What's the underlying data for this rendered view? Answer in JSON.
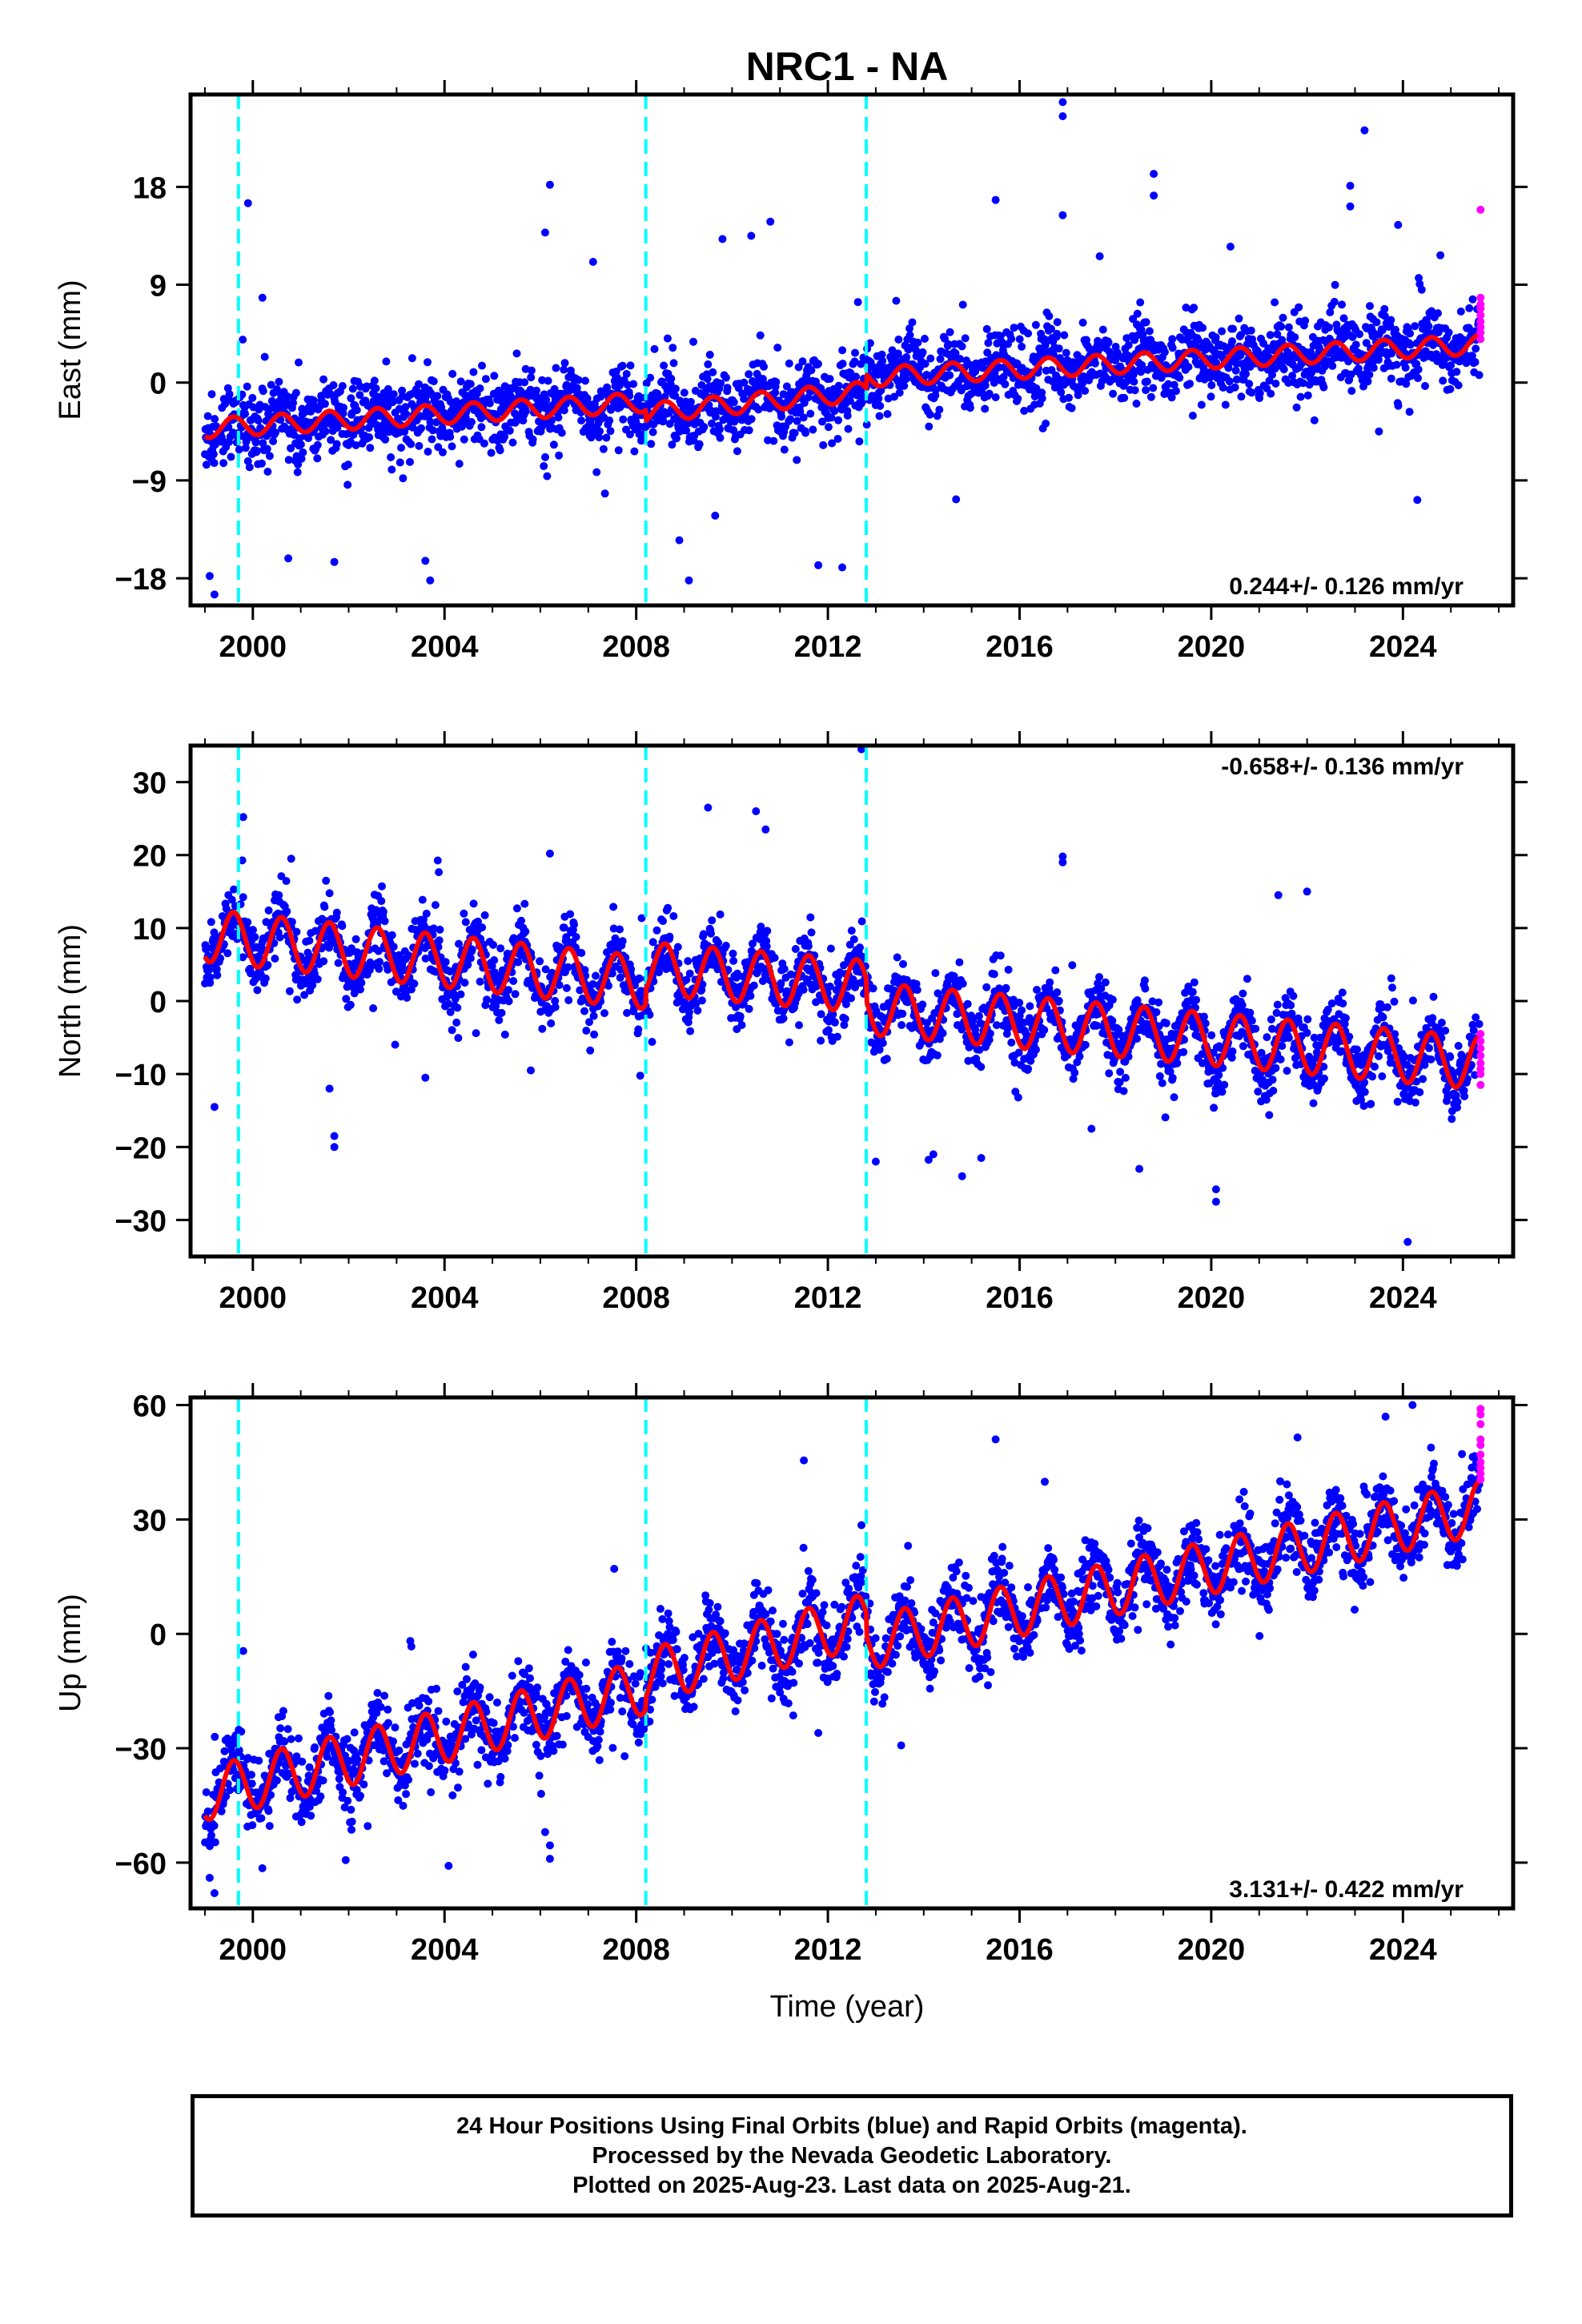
{
  "title": "NRC1 - NA",
  "chart_data": [
    {
      "type": "scatter",
      "ylabel": "East (mm)",
      "xlim": [
        1998.7,
        2026.3
      ],
      "ylim": [
        -20.5,
        26.5
      ],
      "x_ticks": [
        "2000",
        "2004",
        "2008",
        "2012",
        "2016",
        "2020",
        "2024"
      ],
      "y_ticks": [
        -18,
        -9,
        0,
        9,
        18
      ],
      "y_tick_labels": [
        "−18",
        "−9",
        "0",
        "9",
        "18"
      ],
      "rate_text": "0.244+/- 0.126 mm/yr",
      "rate_position": "bottom-right",
      "equipment_changes": [
        1999.7,
        2008.2,
        2012.8
      ],
      "model": {
        "start": 1999.0,
        "end": 2025.6,
        "segments": [
          {
            "from": 1999.0,
            "to": 2008.2,
            "v0": -4.2,
            "v1": -1.8
          },
          {
            "from": 2008.2,
            "to": 2012.8,
            "v0": -2.8,
            "v1": -0.8
          },
          {
            "from": 2012.8,
            "to": 2025.6,
            "v0": 0.5,
            "v1": 3.5
          }
        ],
        "annual_amplitude": 0.9
      },
      "scatter_sigma": 1.6,
      "outliers": [
        [
          1999.2,
          -19.5
        ],
        [
          1999.1,
          -17.8
        ],
        [
          1999.9,
          16.5
        ],
        [
          2000.2,
          7.8
        ],
        [
          2001.7,
          -16.5
        ],
        [
          2003.6,
          -16.4
        ],
        [
          2003.7,
          -18.2
        ],
        [
          2006.2,
          18.2
        ],
        [
          2006.1,
          13.8
        ],
        [
          2007.1,
          11.1
        ],
        [
          2009.1,
          -18.2
        ],
        [
          2008.9,
          -14.5
        ],
        [
          2009.8,
          13.2
        ],
        [
          2010.8,
          14.8
        ],
        [
          2010.4,
          13.5
        ],
        [
          2011.8,
          -16.8
        ],
        [
          2012.3,
          -17.0
        ],
        [
          2015.5,
          16.8
        ],
        [
          2016.9,
          25.8
        ],
        [
          2016.9,
          24.5
        ],
        [
          2016.9,
          15.4
        ],
        [
          2018.8,
          19.2
        ],
        [
          2018.8,
          17.2
        ],
        [
          2020.4,
          12.5
        ],
        [
          2022.9,
          18.1
        ],
        [
          2022.9,
          16.2
        ],
        [
          2023.2,
          23.2
        ],
        [
          2023.9,
          14.5
        ],
        [
          2024.3,
          -10.8
        ],
        [
          2023.5,
          -4.5
        ]
      ],
      "rapid": [
        [
          2025.62,
          15.9
        ],
        [
          2025.62,
          7.8
        ],
        [
          2025.62,
          7.2
        ],
        [
          2025.62,
          6.8
        ],
        [
          2025.62,
          6.2
        ],
        [
          2025.62,
          5.6
        ],
        [
          2025.62,
          5.1
        ],
        [
          2025.62,
          4.6
        ],
        [
          2025.62,
          4.0
        ]
      ]
    },
    {
      "type": "scatter",
      "ylabel": "North (mm)",
      "xlim": [
        1998.7,
        2026.3
      ],
      "ylim": [
        -35,
        35
      ],
      "x_ticks": [
        "2000",
        "2004",
        "2008",
        "2012",
        "2016",
        "2020",
        "2024"
      ],
      "y_ticks": [
        -30,
        -20,
        -10,
        0,
        10,
        20,
        30
      ],
      "y_tick_labels": [
        "−30",
        "−20",
        "−10",
        "0",
        "10",
        "20",
        "30"
      ],
      "rate_text": "-0.658+/- 0.136 mm/yr",
      "rate_position": "top-right",
      "equipment_changes": [
        1999.7,
        2008.2,
        2012.8
      ],
      "model": {
        "start": 1999.0,
        "end": 2025.6,
        "segments": [
          {
            "from": 1999.0,
            "to": 2008.2,
            "v0": 9.0,
            "v1": 2.5
          },
          {
            "from": 2008.2,
            "to": 2012.8,
            "v0": 4.5,
            "v1": 2.0
          },
          {
            "from": 2012.8,
            "to": 2025.6,
            "v0": -1.0,
            "v1": -8.5
          }
        ],
        "annual_amplitude": 3.6
      },
      "scatter_sigma": 2.1,
      "outliers": [
        [
          1999.2,
          -14.5
        ],
        [
          1999.8,
          25.2
        ],
        [
          2000.8,
          19.5
        ],
        [
          2001.6,
          -12.0
        ],
        [
          2001.7,
          -18.5
        ],
        [
          2001.7,
          -20.0
        ],
        [
          2003.6,
          -10.5
        ],
        [
          2005.8,
          -9.5
        ],
        [
          2006.2,
          20.2
        ],
        [
          2009.5,
          26.5
        ],
        [
          2010.5,
          26.0
        ],
        [
          2010.7,
          23.5
        ],
        [
          2012.7,
          34.5
        ],
        [
          2013.0,
          -22.0
        ],
        [
          2014.2,
          -21.0
        ],
        [
          2014.8,
          -24.0
        ],
        [
          2015.2,
          -21.5
        ],
        [
          2016.9,
          19.8
        ],
        [
          2016.9,
          19.0
        ],
        [
          2017.5,
          -17.5
        ],
        [
          2018.5,
          -23.0
        ],
        [
          2020.1,
          -25.8
        ],
        [
          2020.1,
          -27.5
        ],
        [
          2021.4,
          14.5
        ],
        [
          2022.0,
          15.0
        ],
        [
          2024.1,
          -33.0
        ]
      ],
      "rapid": [
        [
          2025.62,
          -4.5
        ],
        [
          2025.62,
          -5.5
        ],
        [
          2025.62,
          -6.5
        ],
        [
          2025.62,
          -7.5
        ],
        [
          2025.62,
          -8.5
        ],
        [
          2025.62,
          -9.3
        ],
        [
          2025.62,
          -10.0
        ],
        [
          2025.62,
          -11.5
        ]
      ]
    },
    {
      "type": "scatter",
      "ylabel": "Up (mm)",
      "xlabel": "Time (year)",
      "xlim": [
        1998.7,
        2026.3
      ],
      "ylim": [
        -72,
        62
      ],
      "x_ticks": [
        "2000",
        "2004",
        "2008",
        "2012",
        "2016",
        "2020",
        "2024"
      ],
      "y_ticks": [
        -60,
        -30,
        0,
        30,
        60
      ],
      "y_tick_labels": [
        "−60",
        "−30",
        "0",
        "30",
        "60"
      ],
      "rate_text": "3.131+/- 0.422 mm/yr",
      "rate_position": "bottom-right",
      "equipment_changes": [
        1999.7,
        2008.2,
        2012.8
      ],
      "model": {
        "start": 1999.0,
        "end": 2025.6,
        "segments": [
          {
            "from": 1999.0,
            "to": 2008.2,
            "v0": -42.0,
            "v1": -14.0
          },
          {
            "from": 2008.2,
            "to": 2012.8,
            "v0": -11.0,
            "v1": 3.5
          },
          {
            "from": 2012.8,
            "to": 2025.6,
            "v0": -2.5,
            "v1": 33.0
          }
        ],
        "annual_amplitude": 7.0
      },
      "scatter_sigma": 4.5,
      "outliers": [
        [
          1999.2,
          -68.0
        ],
        [
          1999.1,
          -64.0
        ],
        [
          1999.8,
          -4.5
        ],
        [
          2006.1,
          -52.0
        ],
        [
          2006.2,
          -59.0
        ],
        [
          2006.2,
          -55.5
        ],
        [
          2011.5,
          45.5
        ],
        [
          2011.8,
          -26.0
        ],
        [
          2012.7,
          28.5
        ],
        [
          2015.5,
          51.0
        ],
        [
          2021.8,
          51.5
        ],
        [
          2024.2,
          60.0
        ]
      ],
      "rapid": [
        [
          2025.62,
          59.0
        ],
        [
          2025.62,
          57.5
        ],
        [
          2025.62,
          55.0
        ],
        [
          2025.62,
          51.0
        ],
        [
          2025.62,
          49.5
        ],
        [
          2025.62,
          47.0
        ],
        [
          2025.62,
          45.0
        ],
        [
          2025.62,
          43.5
        ],
        [
          2025.62,
          42.0
        ],
        [
          2025.62,
          40.5
        ]
      ]
    }
  ],
  "colors": {
    "final": "#0000ff",
    "rapid": "#ff00ff",
    "model": "#ff0000",
    "equipment": "#00ffff",
    "frame": "#000000"
  },
  "footer": {
    "line1": "24 Hour Positions Using Final Orbits (blue) and Rapid Orbits (magenta).",
    "line2": "Processed by the Nevada Geodetic Laboratory.",
    "line3": "Plotted on 2025-Aug-23. Last data on 2025-Aug-21."
  }
}
